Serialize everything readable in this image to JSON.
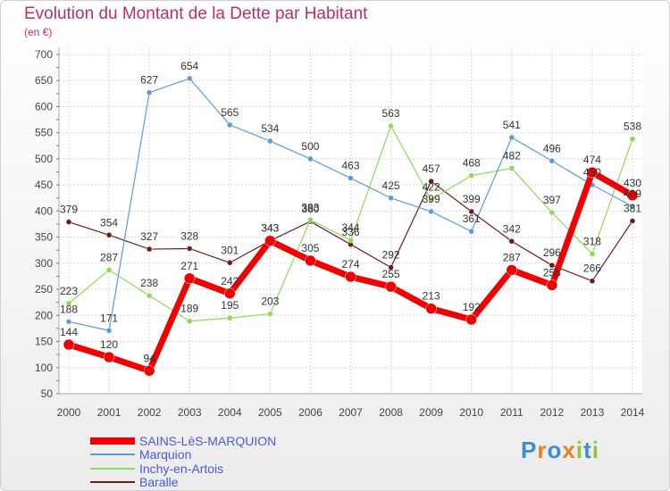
{
  "title": "Evolution du Montant de la Dette par Habitant",
  "unit": "(en €)",
  "logo": {
    "text": "Proxiti",
    "letters": [
      {
        "c": "P",
        "color": "#3a8fd4"
      },
      {
        "c": "r",
        "color": "#e8801f"
      },
      {
        "c": "o",
        "color": "#3a8fd4"
      },
      {
        "c": "x",
        "color": "#e8801f"
      },
      {
        "c": "i",
        "color": "#8cc63f"
      },
      {
        "c": "t",
        "color": "#3a8fd4"
      },
      {
        "c": "i",
        "color": "#8cc63f"
      }
    ]
  },
  "chart_data": {
    "type": "line",
    "x": [
      "2000",
      "2001",
      "2002",
      "2003",
      "2004",
      "2005",
      "2006",
      "2007",
      "2008",
      "2009",
      "2010",
      "2011",
      "2012",
      "2013",
      "2014"
    ],
    "ylim": [
      50,
      700
    ],
    "yticks": [
      "50",
      "100",
      "150",
      "200",
      "250",
      "300",
      "350",
      "400",
      "450",
      "500",
      "550",
      "600",
      "650",
      "700"
    ],
    "grid": true,
    "legend_position": "bottom-left",
    "series": [
      {
        "name": "Baralle",
        "color": "#6e1a1a",
        "width": 1.2,
        "marker": 3,
        "values": [
          379,
          354,
          327,
          328,
          301,
          343,
          380,
          336,
          292,
          457,
          399,
          342,
          296,
          266,
          381
        ]
      },
      {
        "name": "Inchy-en-Artois",
        "color": "#8fd858",
        "width": 1.2,
        "marker": 3,
        "values": [
          223,
          287,
          238,
          189,
          195,
          203,
          383,
          344,
          563,
          422,
          468,
          482,
          397,
          318,
          538
        ]
      },
      {
        "name": "Marquion",
        "color": "#5a9cd6",
        "width": 1.2,
        "marker": 3,
        "values": [
          188,
          171,
          627,
          654,
          565,
          534,
          500,
          463,
          425,
          399,
          361,
          541,
          496,
          450,
          409
        ]
      },
      {
        "name": "SAINS-LèS-MARQUION",
        "color": "#f00000",
        "width": 7,
        "marker": 6,
        "values": [
          144,
          120,
          94,
          271,
          242,
          343,
          305,
          274,
          255,
          213,
          192,
          287,
          258,
          474,
          430
        ]
      }
    ],
    "legend_order": [
      "SAINS-LèS-MARQUION",
      "Marquion",
      "Inchy-en-Artois",
      "Baralle"
    ]
  }
}
